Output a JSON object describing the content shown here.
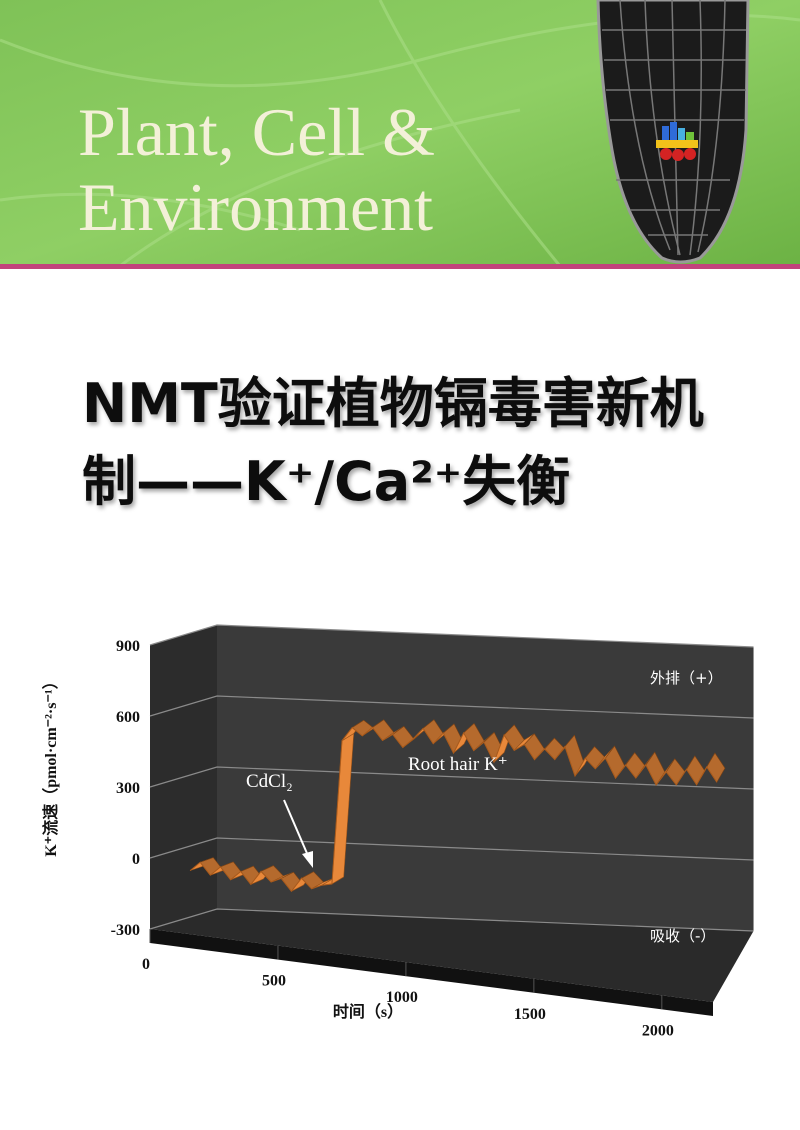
{
  "header": {
    "journal_lines": [
      "Plant, Cell &",
      "Environment"
    ]
  },
  "title_lines": [
    "NMT验证植物镉毒害新机",
    "制——K⁺/Ca²⁺失衡"
  ],
  "chart_data": {
    "type": "ribbon3d",
    "y_label": "K⁺流速（pmol·cm⁻²·s⁻¹）",
    "x_label": "时间（s）",
    "annotations": [
      "CdCl₂",
      "外排（+）",
      "吸收（-）"
    ],
    "x": [
      100,
      140,
      180,
      220,
      260,
      300,
      340,
      380,
      420,
      460,
      500,
      540,
      580,
      620,
      660,
      700,
      740,
      780,
      820,
      860,
      900,
      940,
      980,
      1020,
      1060,
      1100,
      1140,
      1180,
      1220,
      1260,
      1300,
      1340,
      1380,
      1420,
      1460,
      1500,
      1540,
      1580,
      1620,
      1660,
      1700,
      1740,
      1780,
      1820,
      1860,
      1900,
      1940,
      1980,
      2020,
      2060,
      2100,
      2140,
      2180
    ],
    "series": [
      {
        "name": "Root hair K⁺",
        "color": "#e8883a",
        "values": [
          -60,
          -20,
          -70,
          -30,
          -80,
          -40,
          -90,
          -30,
          -70,
          -50,
          -100,
          -40,
          -80,
          -60,
          -50,
          560,
          620,
          590,
          630,
          580,
          610,
          560,
          600,
          650,
          590,
          640,
          560,
          650,
          580,
          620,
          540,
          660,
          600,
          630,
          570,
          620,
          580,
          640,
          520,
          600,
          560,
          610,
          530,
          590,
          540,
          600,
          520,
          580,
          530,
          600,
          540,
          620,
          560
        ]
      }
    ],
    "xlim": [
      0,
      2200
    ],
    "xticks": [
      0,
      500,
      1000,
      1500,
      2000
    ],
    "ylim": [
      -300,
      900
    ],
    "yticks": [
      -300,
      0,
      300,
      600,
      900
    ],
    "grid": true
  }
}
